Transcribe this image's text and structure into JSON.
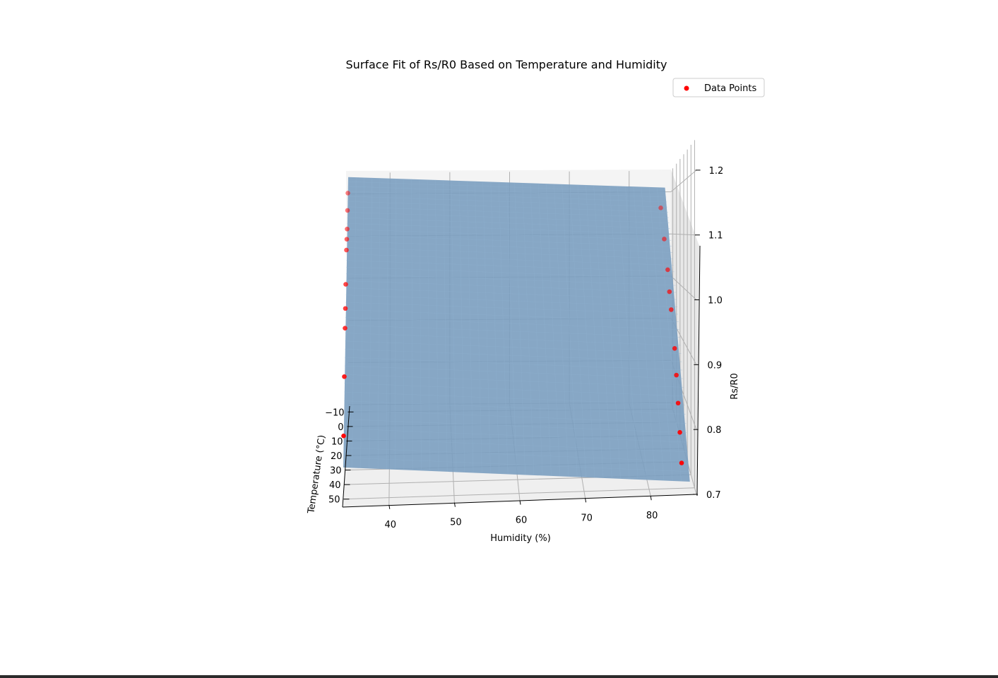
{
  "chart_data": {
    "type": "surface3d",
    "title": "Surface Fit of Rs/R0 Based on Temperature and Humidity",
    "xlabel": "Humidity (%)",
    "ylabel": "Temperature (°C)",
    "zlabel": "Rs/R0",
    "x_ticks": [
      "40",
      "50",
      "60",
      "70",
      "80"
    ],
    "y_ticks": [
      "−10",
      "0",
      "10",
      "20",
      "30",
      "40",
      "50"
    ],
    "z_ticks": [
      "0.7",
      "0.8",
      "0.9",
      "1.0",
      "1.1",
      "1.2"
    ],
    "xlim": [
      33,
      87
    ],
    "ylim": [
      -15,
      55
    ],
    "zlim": [
      0.7,
      1.25
    ],
    "legend": {
      "label": "Data Points",
      "placement": "upper-right"
    },
    "surface": {
      "name": "Fitted surface",
      "color": "#7b9fc0",
      "corners": [
        {
          "humidity": 33,
          "temperature": -15,
          "rs_r0": 1.24
        },
        {
          "humidity": 86,
          "temperature": -15,
          "rs_r0": 1.21
        },
        {
          "humidity": 33,
          "temperature": 55,
          "rs_r0": 0.76
        },
        {
          "humidity": 86,
          "temperature": 55,
          "rs_r0": 0.72
        }
      ]
    },
    "series": [
      {
        "name": "Data Points",
        "color": "#ff0000",
        "points": [
          {
            "humidity": 33,
            "temperature": -10,
            "rs_r0": 1.2
          },
          {
            "humidity": 33,
            "temperature": -5,
            "rs_r0": 1.16
          },
          {
            "humidity": 33,
            "temperature": 0,
            "rs_r0": 1.12
          },
          {
            "humidity": 33,
            "temperature": 5,
            "rs_r0": 1.1
          },
          {
            "humidity": 33,
            "temperature": 10,
            "rs_r0": 1.08
          },
          {
            "humidity": 33,
            "temperature": 20,
            "rs_r0": 1.02
          },
          {
            "humidity": 33,
            "temperature": 25,
            "rs_r0": 0.98
          },
          {
            "humidity": 33,
            "temperature": 30,
            "rs_r0": 0.95
          },
          {
            "humidity": 33,
            "temperature": 40,
            "rs_r0": 0.88
          },
          {
            "humidity": 33,
            "temperature": 50,
            "rs_r0": 0.8
          },
          {
            "humidity": 85,
            "temperature": -10,
            "rs_r0": 1.16
          },
          {
            "humidity": 85,
            "temperature": 0,
            "rs_r0": 1.09
          },
          {
            "humidity": 85,
            "temperature": 10,
            "rs_r0": 1.03
          },
          {
            "humidity": 85,
            "temperature": 15,
            "rs_r0": 0.99
          },
          {
            "humidity": 85,
            "temperature": 20,
            "rs_r0": 0.96
          },
          {
            "humidity": 85,
            "temperature": 30,
            "rs_r0": 0.9
          },
          {
            "humidity": 85,
            "temperature": 35,
            "rs_r0": 0.86
          },
          {
            "humidity": 85,
            "temperature": 40,
            "rs_r0": 0.82
          },
          {
            "humidity": 85,
            "temperature": 45,
            "rs_r0": 0.78
          },
          {
            "humidity": 85,
            "temperature": 50,
            "rs_r0": 0.74
          }
        ]
      }
    ]
  }
}
